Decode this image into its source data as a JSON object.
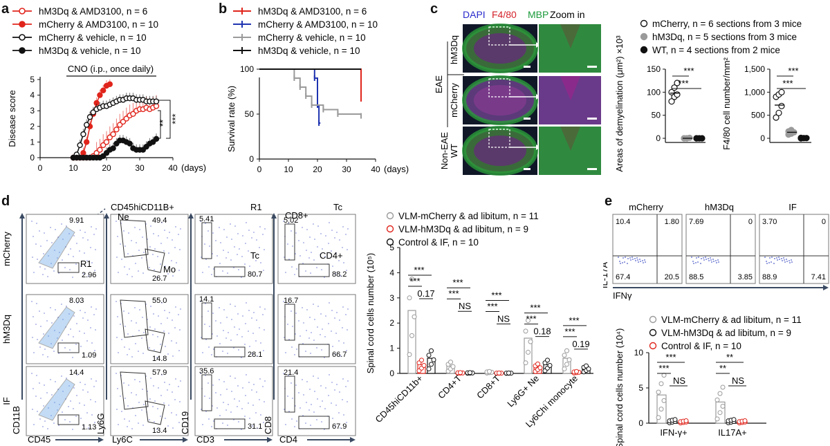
{
  "panel_labels": [
    "a",
    "b",
    "c",
    "d",
    "e"
  ],
  "chart_data": [
    {
      "id": "a",
      "type": "line",
      "ylabel": "Disease score",
      "xlabel": "(days)",
      "xlim": [
        0,
        40
      ],
      "ylim": [
        0,
        5
      ],
      "xticks": [
        "0",
        "10",
        "20",
        "30",
        "40"
      ],
      "yticks": [
        "0",
        "1",
        "2",
        "3",
        "4",
        "5"
      ],
      "annotation": "CNO (i.p., once daily)",
      "sig": [
        "**",
        "***"
      ],
      "legend": [
        {
          "label": "hM3Dq & AMD3100, n = 6",
          "color": "#e0241b",
          "open": true
        },
        {
          "label": "mCherry & AMD3100, n = 10",
          "color": "#e0241b",
          "open": false
        },
        {
          "label": "mCherry & vehicle, n = 10",
          "color": "#111111",
          "open": true
        },
        {
          "label": "hM3Dq & vehicle, n = 10",
          "color": "#111111",
          "open": false
        }
      ],
      "series": [
        {
          "name": "hM3Dq & AMD3100, n = 6",
          "color": "#e0241b",
          "open": true,
          "x": [
            10,
            11,
            12,
            13,
            14,
            15,
            16,
            17,
            18,
            19,
            20,
            21,
            22,
            23,
            24,
            25,
            26,
            27,
            28,
            29,
            30,
            31,
            32,
            33,
            34,
            35
          ],
          "y": [
            0,
            0,
            0,
            0,
            0,
            0,
            0.1,
            0.3,
            0.5,
            0.8,
            1.0,
            1.3,
            1.5,
            1.8,
            2.1,
            2.3,
            2.5,
            2.7,
            2.8,
            3.0,
            3.1,
            3.1,
            3.2,
            3.1,
            3.2,
            3.3
          ]
        },
        {
          "name": "mCherry & AMD3100, n = 10",
          "color": "#e0241b",
          "open": false,
          "x": [
            10,
            11,
            12,
            13,
            14,
            15,
            16,
            17,
            18,
            19,
            20,
            21
          ],
          "y": [
            0,
            0,
            0,
            0.3,
            1.0,
            2.0,
            2.8,
            3.5,
            4.0,
            4.3,
            4.6,
            4.7
          ]
        },
        {
          "name": "mCherry & vehicle, n = 10",
          "color": "#111111",
          "open": true,
          "x": [
            10,
            11,
            12,
            13,
            14,
            15,
            16,
            17,
            18,
            19,
            20,
            21,
            22,
            23,
            24,
            25,
            26,
            27,
            28,
            29,
            30,
            31,
            32,
            33,
            34,
            35
          ],
          "y": [
            0,
            0.2,
            0.8,
            1.5,
            2.1,
            2.6,
            2.9,
            3.1,
            3.2,
            3.3,
            3.3,
            3.4,
            3.5,
            3.6,
            3.7,
            3.7,
            3.8,
            3.8,
            3.8,
            3.7,
            3.7,
            3.7,
            3.6,
            3.6,
            3.6,
            3.6
          ]
        },
        {
          "name": "hM3Dq & vehicle, n = 10",
          "color": "#111111",
          "open": false,
          "x": [
            10,
            11,
            12,
            13,
            14,
            15,
            16,
            17,
            18,
            19,
            20,
            21,
            22,
            23,
            24,
            25,
            26,
            27,
            28,
            29,
            30,
            31,
            32,
            33,
            34,
            35
          ],
          "y": [
            0,
            0,
            0,
            0,
            0,
            0,
            0,
            0,
            0,
            0.1,
            0.3,
            0.5,
            0.6,
            0.9,
            1.1,
            1.1,
            1.0,
            0.9,
            0.6,
            0.5,
            0.5,
            0.5,
            0.7,
            0.9,
            1.0,
            1.2
          ]
        }
      ]
    },
    {
      "id": "b",
      "type": "line",
      "ylabel": "Survival rate (%)",
      "xlabel": "(days)",
      "xlim": [
        0,
        40
      ],
      "ylim": [
        0,
        100
      ],
      "xticks": [
        "0",
        "10",
        "20",
        "30",
        "40"
      ],
      "yticks": [
        "0",
        "50",
        "100"
      ],
      "series": [
        {
          "name": "hM3Dq & AMD3100, n = 6",
          "color": "#e0241b",
          "x": [
            0,
            35,
            35
          ],
          "y": [
            100,
            100,
            67
          ]
        },
        {
          "name": "mCherry & AMD3100, n = 10",
          "color": "#1f33b0",
          "x": [
            0,
            19,
            19,
            20,
            20,
            20.5,
            20.5,
            21
          ],
          "y": [
            100,
            100,
            90,
            90,
            60,
            60,
            40,
            40
          ]
        },
        {
          "name": "mCherry & vehicle, n = 10",
          "color": "#9a9a9a",
          "x": [
            0,
            12,
            12,
            14,
            14,
            16,
            16,
            18,
            18,
            22,
            22,
            27,
            27,
            35,
            35
          ],
          "y": [
            100,
            100,
            90,
            90,
            80,
            80,
            70,
            70,
            60,
            60,
            55,
            55,
            50,
            50,
            48
          ]
        },
        {
          "name": "hM3Dq & vehicle, n = 10",
          "color": "#111111",
          "x": [
            0,
            35,
            35
          ],
          "y": [
            100,
            100,
            100
          ]
        }
      ]
    },
    {
      "id": "c-demyelination",
      "type": "scatter",
      "ylabel": "Areas of demyelination (μm²) ×10³",
      "ylim": [
        0,
        150
      ],
      "yticks": [
        "0",
        "50",
        "100",
        "150"
      ],
      "sig": [
        "***",
        "***"
      ],
      "groups": [
        {
          "name": "mCherry, n = 6 sections from 3 mice",
          "fill": "#ffffff",
          "stroke": "#111111",
          "values": [
            80,
            90,
            95,
            100,
            110,
            120
          ],
          "mean": 98
        },
        {
          "name": "hM3Dq, n = 5 sections from 3 mice",
          "fill": "#9a9a9a",
          "stroke": "#9a9a9a",
          "values": [
            0,
            0,
            1,
            0,
            0
          ],
          "mean": 0
        },
        {
          "name": "WT, n = 4 sections from 2 mice",
          "fill": "#111111",
          "stroke": "#111111",
          "values": [
            0,
            0,
            0,
            0
          ],
          "mean": 0
        }
      ]
    },
    {
      "id": "c-f480",
      "type": "scatter",
      "ylabel": "F4/80 cell number/mm²",
      "ylim": [
        0,
        1500
      ],
      "yticks": [
        "0",
        "500",
        "1,000",
        "1,500"
      ],
      "sig": [
        "***",
        "***"
      ],
      "groups": [
        {
          "name": "mCherry",
          "fill": "#ffffff",
          "stroke": "#111111",
          "values": [
            450,
            550,
            700,
            900,
            950,
            1000
          ],
          "mean": 720
        },
        {
          "name": "hM3Dq",
          "fill": "#9a9a9a",
          "stroke": "#9a9a9a",
          "values": [
            80,
            100,
            130,
            150,
            180
          ],
          "mean": 130
        },
        {
          "name": "WT",
          "fill": "#111111",
          "stroke": "#111111",
          "values": [
            0,
            5,
            5,
            10
          ],
          "mean": 5
        }
      ]
    },
    {
      "id": "d-bar",
      "type": "bar",
      "ylabel": "Spinal cord cells number (10⁵)",
      "ylim": [
        0,
        5
      ],
      "yticks": [
        "0",
        "1",
        "2",
        "3",
        "4",
        "5"
      ],
      "categories": [
        "CD45hiCD11b+",
        "CD4+T",
        "CD8+T",
        "Ly6G+ Ne",
        "Ly6Chi monocyte"
      ],
      "sig_labels": [
        [
          "***",
          "***",
          "0.17"
        ],
        [
          "***",
          "***",
          "NS"
        ],
        [
          "***",
          "***",
          "NS"
        ],
        [
          "***",
          "***",
          "0.18"
        ],
        [
          "***",
          "***",
          "0.19"
        ]
      ],
      "series": [
        {
          "name": "VLM-mCherry & ad libitum, n = 11",
          "color": "#9a9a9a",
          "values": [
            2.5,
            0.3,
            0.05,
            1.4,
            0.6
          ]
        },
        {
          "name": "VLM-hM3Dq & ad libitum, n = 9",
          "color": "#e0241b",
          "values": [
            0.35,
            0.02,
            0.01,
            0.25,
            0.05
          ]
        },
        {
          "name": "Control & IF, n = 10",
          "color": "#111111",
          "values": [
            0.6,
            0.02,
            0.01,
            0.35,
            0.2
          ]
        }
      ]
    },
    {
      "id": "e-bar",
      "type": "bar",
      "ylabel": "Spinal cord cells number (10⁴)",
      "ylim": [
        0,
        10
      ],
      "yticks": [
        "0",
        "5",
        "10"
      ],
      "categories": [
        "IFN-γ+",
        "IL17A+"
      ],
      "sig_labels": [
        [
          "***",
          "***",
          "NS"
        ],
        [
          "**",
          "**",
          "NS"
        ]
      ],
      "series": [
        {
          "name": "VLM-mCherry & ad libitum, n = 11",
          "color": "#9a9a9a",
          "values": [
            4.0,
            3.0
          ]
        },
        {
          "name": "VLM-hM3Dq & ad libitum, n = 9",
          "color": "#111111",
          "values": [
            0.3,
            0.3
          ]
        },
        {
          "name": "Control & IF, n = 10",
          "color": "#e0241b",
          "values": [
            0.2,
            0.2
          ]
        }
      ]
    }
  ],
  "panel_c": {
    "header": [
      "DAPI",
      "F4/80",
      "MBP"
    ],
    "header_colors": [
      "#2a2acc",
      "#d4222a",
      "#1a9a3a"
    ],
    "zoom_label": "Zoom in",
    "rows": [
      [
        "EAE",
        "hM3Dq"
      ],
      [
        "EAE",
        "mCherry"
      ],
      [
        "Non-EAE",
        "WT"
      ]
    ],
    "legend": [
      {
        "label": "mCherry, n = 6 sections from 3 mice",
        "fill": "#ffffff",
        "stroke": "#111111"
      },
      {
        "label": "hM3Dq, n = 5 sections from 3 mice",
        "fill": "#9a9a9a",
        "stroke": "#9a9a9a"
      },
      {
        "label": "WT, n = 4 sections from 2 mice",
        "fill": "#111111",
        "stroke": "#111111"
      }
    ]
  },
  "panel_d": {
    "gate_header": "CD45hiCD11B+",
    "col_titles": [
      "",
      "",
      "R1",
      "Tc"
    ],
    "row_labels": [
      "mCherry",
      "hM3Dq",
      "IF"
    ],
    "x_axes": [
      "CD45",
      "Ly6C",
      "CD3",
      "CD4"
    ],
    "y_axes": [
      "CD11B",
      "Ly6G",
      "CD19",
      "CD8"
    ],
    "gate_names": {
      "r1": "R1",
      "ne": "Ne",
      "mo": "Mo",
      "tc": "Tc",
      "cd8": "CD8+",
      "cd4": "CD4+"
    },
    "values": [
      [
        [
          "9.91",
          "2.96"
        ],
        [
          "49.4",
          "26.7"
        ],
        [
          "5.41",
          "80.7"
        ],
        [
          "5.02",
          "88.2"
        ]
      ],
      [
        [
          "8.03",
          "1.09"
        ],
        [
          "55.0",
          "14.8"
        ],
        [
          "14.1",
          "28.1"
        ],
        [
          "16.7",
          "66.7"
        ]
      ],
      [
        [
          "14.4",
          "1.13"
        ],
        [
          "57.9",
          "13.4"
        ],
        [
          "35.6",
          "31.1"
        ],
        [
          "21.4",
          "67.9"
        ]
      ]
    ]
  },
  "panel_e": {
    "col_titles": [
      "mCherry",
      "hM3Dq",
      "IF"
    ],
    "y_axis": "IL-17A",
    "x_axis": "IFNγ",
    "quadrants": [
      [
        "10.4",
        "1.80",
        "67.4",
        "20.5"
      ],
      [
        "7.69",
        "0",
        "88.5",
        "3.85"
      ],
      [
        "3.70",
        "0",
        "88.9",
        "7.41"
      ]
    ]
  }
}
